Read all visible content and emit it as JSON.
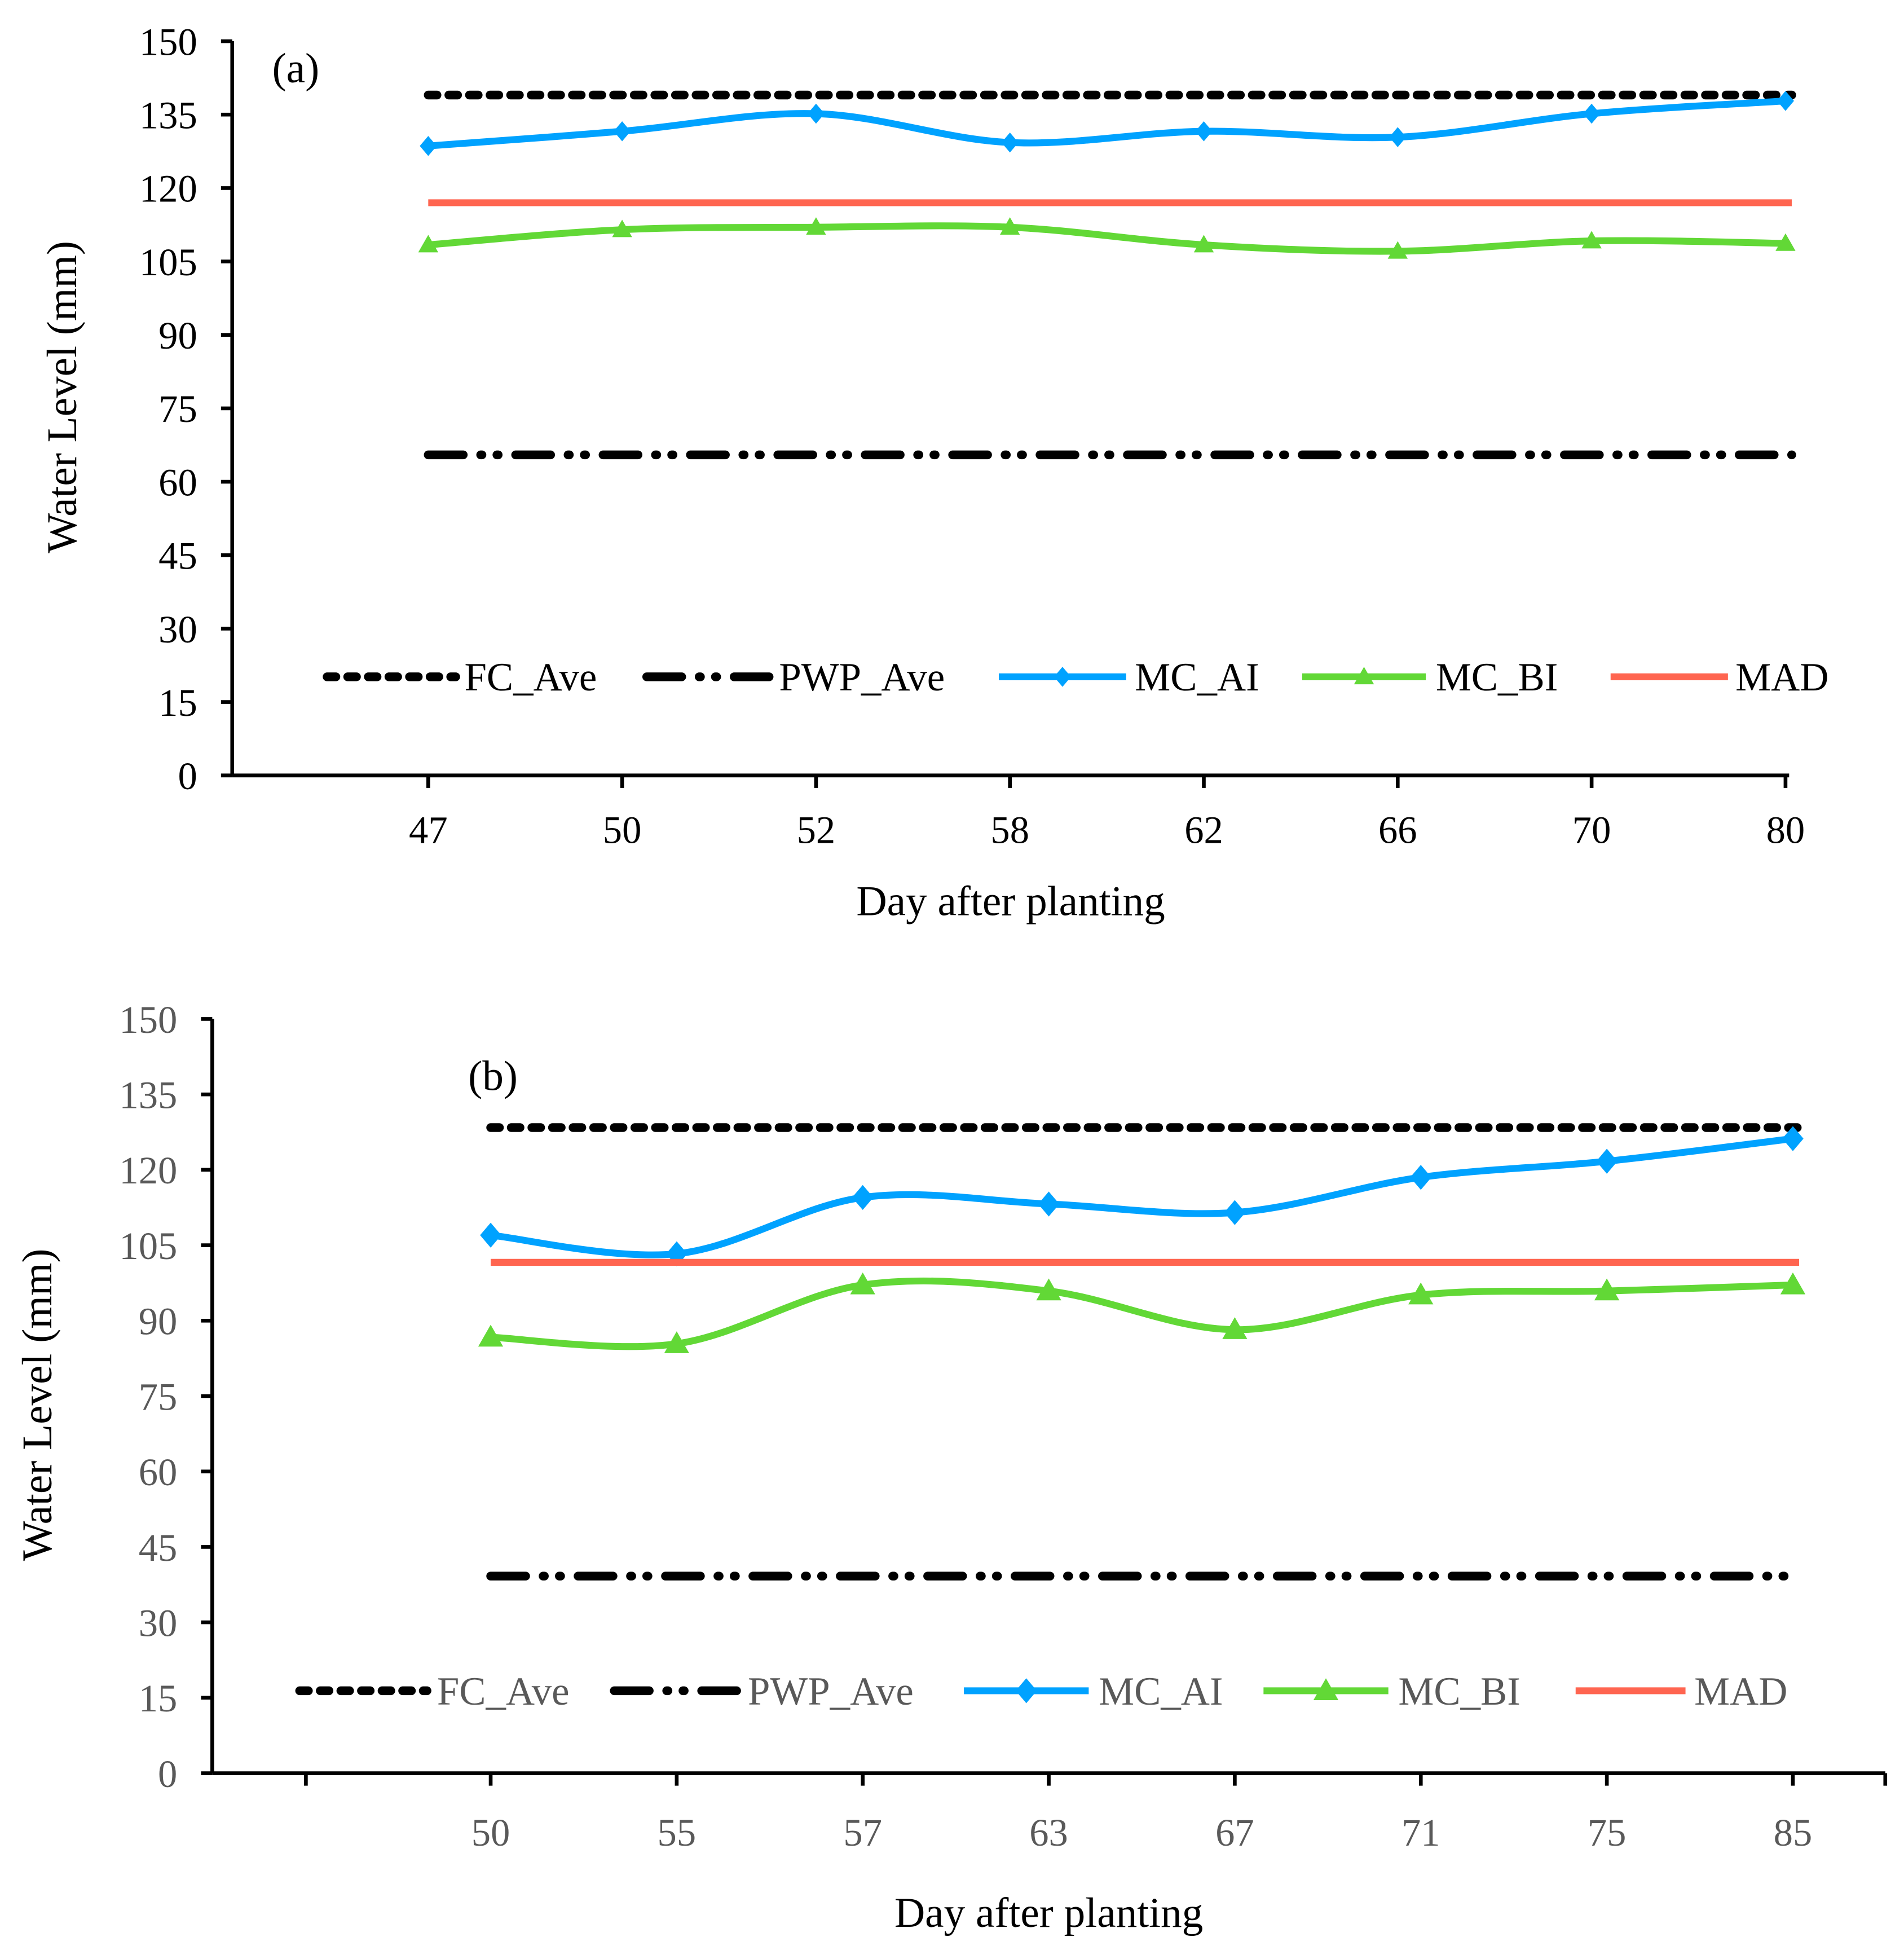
{
  "chart_data": [
    {
      "type": "line",
      "panel_label": "(a)",
      "xlabel": "Day after planting",
      "ylabel": "Water Level (mm)",
      "ylim": [
        0,
        150
      ],
      "yticks": [
        0,
        15,
        30,
        45,
        60,
        75,
        90,
        105,
        120,
        135,
        150
      ],
      "categories": [
        "47",
        "50",
        "52",
        "58",
        "62",
        "66",
        "70",
        "80"
      ],
      "tick_color": "#000000",
      "legend_position": "bottom-inside",
      "grid": false,
      "series": [
        {
          "name": "FC_Ave",
          "style": "dotted",
          "color": "#000000",
          "values": [
            139,
            139,
            139,
            139,
            139,
            139,
            139,
            139
          ]
        },
        {
          "name": "PWP_Ave",
          "style": "long-dash-dot-dot",
          "color": "#000000",
          "values": [
            65.5,
            65.5,
            65.5,
            65.5,
            65.5,
            65.5,
            65.5,
            65.5
          ]
        },
        {
          "name": "MC_AI",
          "style": "smooth-diamond",
          "color": "#00A2FF",
          "values": [
            128.6,
            131.6,
            135.2,
            129.3,
            131.6,
            130.4,
            135.2,
            137.8
          ]
        },
        {
          "name": "MC_BI",
          "style": "smooth-triangle",
          "color": "#62D836",
          "values": [
            108.4,
            111.5,
            112,
            112,
            108.4,
            107.1,
            109.2,
            108.7
          ]
        },
        {
          "name": "MAD",
          "style": "solid",
          "color": "#FF6550",
          "values": [
            117,
            117,
            117,
            117,
            117,
            117,
            117,
            117
          ]
        }
      ]
    },
    {
      "type": "line",
      "panel_label": "(b)",
      "xlabel": "Day after planting",
      "ylabel": "Water Level (mm)",
      "ylim": [
        0,
        150
      ],
      "yticks": [
        0,
        15,
        30,
        45,
        60,
        75,
        90,
        105,
        120,
        135,
        150
      ],
      "categories": [
        "50",
        "55",
        "57",
        "63",
        "67",
        "71",
        "75",
        "85"
      ],
      "tick_color": "#595959",
      "legend_position": "bottom-inside",
      "grid": false,
      "series": [
        {
          "name": "FC_Ave",
          "style": "dotted",
          "color": "#000000",
          "values": [
            128.4,
            128.4,
            128.4,
            128.4,
            128.4,
            128.4,
            128.4,
            128.4
          ]
        },
        {
          "name": "PWP_Ave",
          "style": "long-dash-dot-dot",
          "color": "#000000",
          "values": [
            39.2,
            39.2,
            39.2,
            39.2,
            39.2,
            39.2,
            39.2,
            39.2
          ]
        },
        {
          "name": "MC_AI",
          "style": "smooth-diamond",
          "color": "#00A2FF",
          "values": [
            107,
            103.3,
            114.5,
            113.2,
            111.5,
            118.5,
            121.7,
            126.2
          ]
        },
        {
          "name": "MC_BI",
          "style": "smooth-triangle",
          "color": "#62D836",
          "values": [
            86.7,
            85.4,
            97.1,
            95.9,
            88.2,
            95.1,
            95.9,
            97.1
          ]
        },
        {
          "name": "MAD",
          "style": "solid",
          "color": "#FF6550",
          "values": [
            101.6,
            101.6,
            101.6,
            101.6,
            101.6,
            101.6,
            101.6,
            101.6
          ]
        }
      ]
    }
  ]
}
